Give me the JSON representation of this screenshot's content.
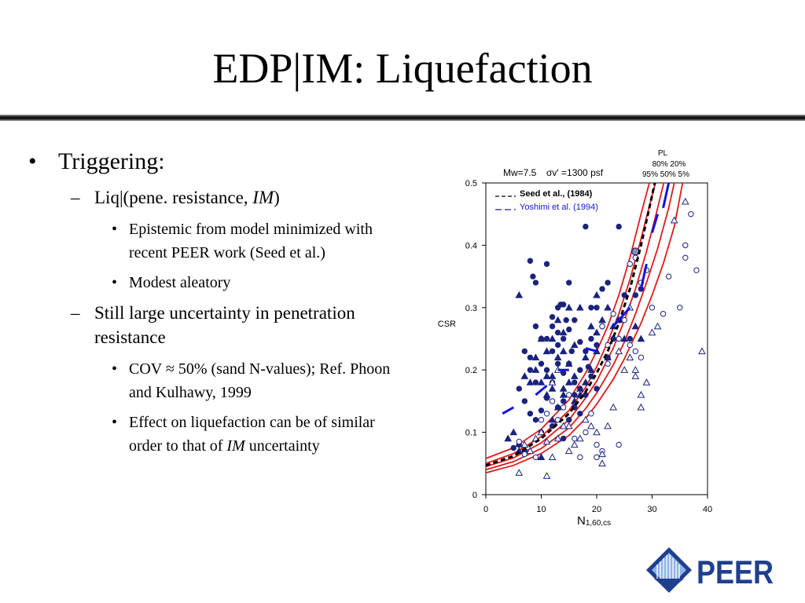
{
  "slide": {
    "title": "EDP|IM: Liquefaction",
    "bullets": {
      "triggering": "Triggering:",
      "liq_pre": "Liq|(pene. resistance, ",
      "liq_im": "IM",
      "liq_post": ")",
      "epistemic": "Epistemic from model minimized with recent PEER work (Seed et al.)",
      "aleatory": "Modest aleatory",
      "still": "Still large uncertainty in penetration resistance",
      "cov": "COV ≈ 50% (sand N-values); Ref. Phoon and Kulhawy, 1999",
      "effect_pre": "Effect on liquefaction can be of similar order to that of ",
      "effect_im": "IM",
      "effect_post": " uncertainty"
    },
    "markers": {
      "l1": "•",
      "l2": "–",
      "l3": "•"
    }
  },
  "logo": {
    "text": "PEER",
    "color": "#1f3f8f"
  },
  "chart_data": {
    "type": "scatter",
    "xlabel": "N1,60,cs",
    "ylabel": "CSR",
    "xlim": [
      0,
      40
    ],
    "ylim": [
      0,
      0.5
    ],
    "xticks": [
      0,
      10,
      20,
      30,
      40
    ],
    "yticks": [
      0,
      0.1,
      0.2,
      0.3,
      0.4,
      0.5
    ],
    "header": {
      "mw": "Mw=7.5",
      "sigma": "σv' =1300 psf",
      "pl_label": "PL",
      "pl_row1": "80%  20%",
      "pl_row2": "95%    50%   5%"
    },
    "legend_position": "top-left",
    "legend": [
      {
        "text": "Seed et al., (1984)",
        "color": "#000000",
        "dash": "5,3"
      },
      {
        "text": "Yoshimi et al. (1994)",
        "color": "#1414d8",
        "dash": "8,4"
      }
    ],
    "colors": {
      "marker": "#1a237e",
      "prob": "#e21a1a",
      "seed": "#000000",
      "yoshimi": "#1414d8"
    },
    "probability_curves": [
      {
        "name": "95%",
        "points": [
          [
            0,
            0.058
          ],
          [
            5,
            0.075
          ],
          [
            10,
            0.105
          ],
          [
            15,
            0.152
          ],
          [
            18,
            0.195
          ],
          [
            20,
            0.23
          ],
          [
            22,
            0.27
          ],
          [
            24,
            0.32
          ],
          [
            26,
            0.38
          ],
          [
            28,
            0.45
          ],
          [
            29.5,
            0.5
          ]
        ]
      },
      {
        "name": "80%",
        "points": [
          [
            0,
            0.05
          ],
          [
            5,
            0.066
          ],
          [
            10,
            0.093
          ],
          [
            15,
            0.135
          ],
          [
            18,
            0.172
          ],
          [
            20,
            0.205
          ],
          [
            22,
            0.245
          ],
          [
            24,
            0.29
          ],
          [
            26,
            0.345
          ],
          [
            28,
            0.41
          ],
          [
            30,
            0.48
          ],
          [
            30.6,
            0.5
          ]
        ]
      },
      {
        "name": "50%",
        "points": [
          [
            0,
            0.045
          ],
          [
            5,
            0.059
          ],
          [
            10,
            0.083
          ],
          [
            15,
            0.12
          ],
          [
            18,
            0.155
          ],
          [
            20,
            0.182
          ],
          [
            23,
            0.235
          ],
          [
            25,
            0.28
          ],
          [
            27,
            0.33
          ],
          [
            29,
            0.39
          ],
          [
            31,
            0.46
          ],
          [
            32.1,
            0.5
          ]
        ]
      },
      {
        "name": "20%",
        "points": [
          [
            0,
            0.04
          ],
          [
            5,
            0.053
          ],
          [
            10,
            0.074
          ],
          [
            15,
            0.107
          ],
          [
            18,
            0.138
          ],
          [
            20,
            0.163
          ],
          [
            23,
            0.208
          ],
          [
            25,
            0.245
          ],
          [
            27,
            0.29
          ],
          [
            29,
            0.34
          ],
          [
            31,
            0.395
          ],
          [
            33,
            0.46
          ],
          [
            34,
            0.5
          ]
        ]
      },
      {
        "name": "5%",
        "points": [
          [
            0,
            0.035
          ],
          [
            5,
            0.047
          ],
          [
            10,
            0.066
          ],
          [
            15,
            0.095
          ],
          [
            18,
            0.122
          ],
          [
            20,
            0.145
          ],
          [
            23,
            0.185
          ],
          [
            25,
            0.218
          ],
          [
            28,
            0.275
          ],
          [
            30,
            0.32
          ],
          [
            32,
            0.37
          ],
          [
            34,
            0.43
          ],
          [
            35.5,
            0.5
          ]
        ]
      }
    ],
    "seed_curve": [
      [
        0,
        0.047
      ],
      [
        5,
        0.062
      ],
      [
        10,
        0.09
      ],
      [
        15,
        0.13
      ],
      [
        18,
        0.165
      ],
      [
        20,
        0.195
      ],
      [
        22,
        0.23
      ],
      [
        24,
        0.275
      ],
      [
        26,
        0.33
      ],
      [
        28,
        0.4
      ],
      [
        29.5,
        0.46
      ],
      [
        30.5,
        0.5
      ]
    ],
    "yoshimi_segments": [
      [
        [
          3,
          0.13
        ],
        [
          5,
          0.14
        ]
      ],
      [
        [
          9,
          0.16
        ],
        [
          11,
          0.175
        ]
      ],
      [
        [
          13,
          0.2
        ],
        [
          15,
          0.2
        ]
      ],
      [
        [
          18,
          0.235
        ],
        [
          20,
          0.23
        ]
      ],
      [
        [
          23,
          0.27
        ],
        [
          26,
          0.3
        ]
      ],
      [
        [
          28,
          0.33
        ],
        [
          29,
          0.37
        ]
      ],
      [
        [
          30,
          0.42
        ],
        [
          31,
          0.45
        ]
      ],
      [
        [
          32,
          0.46
        ],
        [
          33,
          0.5
        ]
      ]
    ],
    "series": [
      {
        "name": "filled_circles",
        "shape": "circle",
        "filled": true,
        "points": [
          [
            8,
            0.375
          ],
          [
            8.5,
            0.35
          ],
          [
            9,
            0.34
          ],
          [
            11,
            0.37
          ],
          [
            12,
            0.285
          ],
          [
            13,
            0.3
          ],
          [
            13.5,
            0.305
          ],
          [
            14,
            0.305
          ],
          [
            14.5,
            0.28
          ],
          [
            15,
            0.34
          ],
          [
            16,
            0.28
          ],
          [
            17,
            0.245
          ],
          [
            18,
            0.43
          ],
          [
            19,
            0.3
          ],
          [
            20,
            0.3
          ],
          [
            21,
            0.33
          ],
          [
            22,
            0.34
          ],
          [
            24,
            0.43
          ],
          [
            25,
            0.32
          ],
          [
            26,
            0.25
          ],
          [
            27,
            0.32
          ],
          [
            28,
            0.33
          ],
          [
            7,
            0.23
          ],
          [
            8,
            0.2
          ],
          [
            9,
            0.27
          ],
          [
            10,
            0.21
          ],
          [
            11,
            0.2
          ],
          [
            12,
            0.23
          ],
          [
            13,
            0.26
          ],
          [
            13,
            0.21
          ],
          [
            14,
            0.25
          ],
          [
            15,
            0.21
          ],
          [
            15.5,
            0.23
          ],
          [
            16,
            0.18
          ],
          [
            17,
            0.17
          ],
          [
            18,
            0.23
          ],
          [
            18.5,
            0.205
          ],
          [
            19,
            0.25
          ],
          [
            20,
            0.24
          ],
          [
            21,
            0.27
          ],
          [
            22,
            0.22
          ],
          [
            23,
            0.25
          ],
          [
            24,
            0.28
          ],
          [
            6,
            0.17
          ],
          [
            7,
            0.15
          ],
          [
            8,
            0.13
          ],
          [
            9,
            0.12
          ],
          [
            10,
            0.135
          ],
          [
            11,
            0.155
          ],
          [
            12,
            0.18
          ],
          [
            13,
            0.14
          ],
          [
            14,
            0.15
          ],
          [
            15,
            0.12
          ],
          [
            16,
            0.14
          ],
          [
            17,
            0.13
          ],
          [
            18,
            0.16
          ],
          [
            19,
            0.19
          ],
          [
            20,
            0.17
          ],
          [
            8,
            0.22
          ],
          [
            9,
            0.18
          ],
          [
            10,
            0.1
          ],
          [
            12,
            0.11
          ],
          [
            14,
            0.09
          ],
          [
            6,
            0.08
          ],
          [
            7,
            0.07
          ],
          [
            5,
            0.075
          ],
          [
            11,
            0.25
          ],
          [
            12,
            0.27
          ],
          [
            10,
            0.25
          ],
          [
            16,
            0.16
          ],
          [
            17,
            0.2
          ],
          [
            13,
            0.24
          ],
          [
            15,
            0.265
          ],
          [
            14,
            0.195
          ]
        ]
      },
      {
        "name": "filled_triangles",
        "shape": "triangle",
        "filled": true,
        "points": [
          [
            6,
            0.32
          ],
          [
            9,
            0.2
          ],
          [
            10,
            0.25
          ],
          [
            11,
            0.23
          ],
          [
            12,
            0.19
          ],
          [
            14,
            0.16
          ],
          [
            15,
            0.21
          ],
          [
            16,
            0.19
          ],
          [
            17,
            0.17
          ],
          [
            18,
            0.22
          ],
          [
            19,
            0.27
          ],
          [
            20,
            0.26
          ],
          [
            21,
            0.28
          ],
          [
            7,
            0.19
          ],
          [
            8,
            0.18
          ],
          [
            9,
            0.22
          ],
          [
            10,
            0.18
          ],
          [
            11,
            0.16
          ],
          [
            12,
            0.17
          ],
          [
            13,
            0.22
          ],
          [
            14,
            0.23
          ],
          [
            15,
            0.18
          ],
          [
            16,
            0.15
          ],
          [
            17,
            0.16
          ],
          [
            18,
            0.18
          ],
          [
            4,
            0.09
          ],
          [
            5,
            0.1
          ],
          [
            6,
            0.07
          ],
          [
            10,
            0.06
          ],
          [
            12,
            0.12
          ],
          [
            13,
            0.14
          ],
          [
            14,
            0.17
          ],
          [
            11,
            0.19
          ],
          [
            12,
            0.25
          ],
          [
            14,
            0.26
          ],
          [
            16,
            0.24
          ],
          [
            19,
            0.2
          ],
          [
            20,
            0.23
          ],
          [
            22,
            0.22
          ],
          [
            25,
            0.25
          ],
          [
            27,
            0.27
          ],
          [
            28,
            0.25
          ],
          [
            13,
            0.28
          ],
          [
            15,
            0.3
          ],
          [
            17,
            0.3
          ],
          [
            20,
            0.32
          ],
          [
            22,
            0.3
          ],
          [
            23,
            0.27
          ],
          [
            24,
            0.28
          ]
        ]
      },
      {
        "name": "open_circles",
        "shape": "circle",
        "filled": false,
        "points": [
          [
            6,
            0.085
          ],
          [
            7,
            0.065
          ],
          [
            9,
            0.06
          ],
          [
            10,
            0.12
          ],
          [
            11,
            0.13
          ],
          [
            13,
            0.12
          ],
          [
            14,
            0.14
          ],
          [
            15,
            0.16
          ],
          [
            16,
            0.09
          ],
          [
            17,
            0.06
          ],
          [
            18,
            0.1
          ],
          [
            19,
            0.13
          ],
          [
            20,
            0.08
          ],
          [
            21,
            0.07
          ],
          [
            22,
            0.21
          ],
          [
            24,
            0.08
          ],
          [
            25,
            0.28
          ],
          [
            26,
            0.24
          ],
          [
            27,
            0.23
          ],
          [
            28,
            0.34
          ],
          [
            29,
            0.36
          ],
          [
            30,
            0.3
          ],
          [
            32,
            0.29
          ],
          [
            33,
            0.35
          ],
          [
            35,
            0.3
          ],
          [
            36,
            0.38
          ],
          [
            38,
            0.36
          ],
          [
            36,
            0.4
          ],
          [
            37,
            0.45
          ],
          [
            27,
            0.38
          ],
          [
            24,
            0.25
          ],
          [
            22,
            0.24
          ],
          [
            20,
            0.06
          ],
          [
            12,
            0.15
          ],
          [
            26,
            0.37
          ],
          [
            23,
            0.29
          ],
          [
            21,
            0.27
          ],
          [
            28,
            0.22
          ]
        ]
      },
      {
        "name": "open_triangles",
        "shape": "triangle",
        "filled": false,
        "points": [
          [
            6,
            0.035
          ],
          [
            7,
            0.08
          ],
          [
            8,
            0.07
          ],
          [
            9,
            0.09
          ],
          [
            10,
            0.1
          ],
          [
            11,
            0.085
          ],
          [
            12,
            0.06
          ],
          [
            13,
            0.09
          ],
          [
            14,
            0.11
          ],
          [
            15,
            0.07
          ],
          [
            16,
            0.08
          ],
          [
            17,
            0.09
          ],
          [
            18,
            0.12
          ],
          [
            19,
            0.11
          ],
          [
            20,
            0.1
          ],
          [
            21,
            0.065
          ],
          [
            22,
            0.11
          ],
          [
            23,
            0.14
          ],
          [
            24,
            0.23
          ],
          [
            25,
            0.2
          ],
          [
            26,
            0.22
          ],
          [
            27,
            0.2
          ],
          [
            28,
            0.16
          ],
          [
            29,
            0.18
          ],
          [
            30,
            0.26
          ],
          [
            31,
            0.27
          ],
          [
            34,
            0.44
          ],
          [
            36,
            0.47
          ],
          [
            39,
            0.23
          ],
          [
            28,
            0.14
          ],
          [
            27,
            0.19
          ],
          [
            26,
            0.3
          ],
          [
            21,
            0.05
          ],
          [
            11,
            0.03
          ],
          [
            15,
            0.11
          ],
          [
            13,
            0.2
          ],
          [
            12,
            0.18
          ]
        ]
      },
      {
        "name": "highlight",
        "shape": "circle",
        "filled": true,
        "points": [
          [
            27,
            0.39
          ]
        ]
      }
    ]
  }
}
